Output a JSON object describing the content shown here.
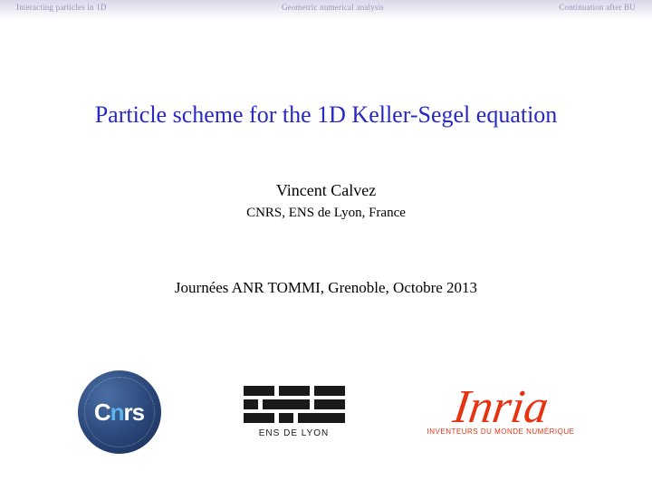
{
  "nav": {
    "left": "Interacting particles in 1D",
    "center": "Geometric numerical analysis",
    "right": "Continuation after BU"
  },
  "title": "Particle scheme for the 1D Keller-Segel equation",
  "author": "Vincent Calvez",
  "affiliation": "CNRS, ENS de Lyon, France",
  "event": "Journées ANR TOMMI, Grenoble, Octobre 2013",
  "logos": {
    "cnrs": {
      "c": "C",
      "n": "n",
      "rs": "rs"
    },
    "ens_caption": "ENS DE LYON",
    "inria": {
      "name": "Inria",
      "tagline": "INVENTEURS DU MONDE NUMÉRIQUE"
    }
  },
  "colors": {
    "title": "#2828c8",
    "nav_text": "#9595b5",
    "inria_red": "#e63312",
    "cnrs_blue_dark": "#1a2d55",
    "cnrs_blue_light": "#5bb5e8",
    "ens_black": "#1a1a1a"
  }
}
